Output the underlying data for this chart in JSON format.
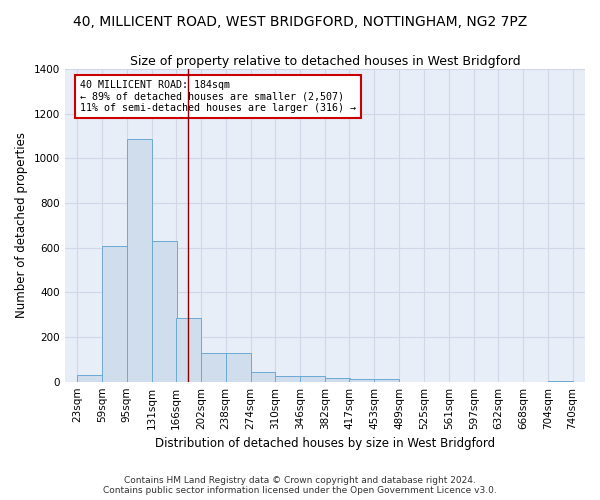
{
  "title": "40, MILLICENT ROAD, WEST BRIDGFORD, NOTTINGHAM, NG2 7PZ",
  "subtitle": "Size of property relative to detached houses in West Bridgford",
  "xlabel": "Distribution of detached houses by size in West Bridgford",
  "ylabel": "Number of detached properties",
  "footer_line1": "Contains HM Land Registry data © Crown copyright and database right 2024.",
  "footer_line2": "Contains public sector information licensed under the Open Government Licence v3.0.",
  "bar_left_edges": [
    23,
    59,
    95,
    131,
    166,
    202,
    238,
    274,
    310,
    346,
    382,
    417,
    453,
    489,
    525,
    561,
    597,
    632,
    668,
    704
  ],
  "bar_heights": [
    30,
    610,
    1085,
    630,
    285,
    130,
    130,
    45,
    25,
    25,
    15,
    10,
    10,
    0,
    0,
    0,
    0,
    0,
    0,
    5
  ],
  "bar_color": "#cfdded",
  "bar_edge_color": "#6aaad4",
  "vline_x": 184,
  "vline_color": "#8b0000",
  "annotation_text": "40 MILLICENT ROAD: 184sqm\n← 89% of detached houses are smaller (2,507)\n11% of semi-detached houses are larger (316) →",
  "annotation_box_facecolor": "#ffffff",
  "annotation_box_edgecolor": "#cc0000",
  "ylim": [
    0,
    1400
  ],
  "xlim_left": 5,
  "xlim_right": 758,
  "bg_color": "#e8eef8",
  "grid_color": "#d0d8e8",
  "title_fontsize": 10,
  "subtitle_fontsize": 9,
  "tick_fontsize": 7.5,
  "ylabel_fontsize": 8.5,
  "xlabel_fontsize": 8.5,
  "footer_fontsize": 6.5,
  "yticks": [
    0,
    200,
    400,
    600,
    800,
    1000,
    1200,
    1400
  ],
  "xtick_labels": [
    "23sqm",
    "59sqm",
    "95sqm",
    "131sqm",
    "166sqm",
    "202sqm",
    "238sqm",
    "274sqm",
    "310sqm",
    "346sqm",
    "382sqm",
    "417sqm",
    "453sqm",
    "489sqm",
    "525sqm",
    "561sqm",
    "597sqm",
    "632sqm",
    "668sqm",
    "704sqm",
    "740sqm"
  ]
}
